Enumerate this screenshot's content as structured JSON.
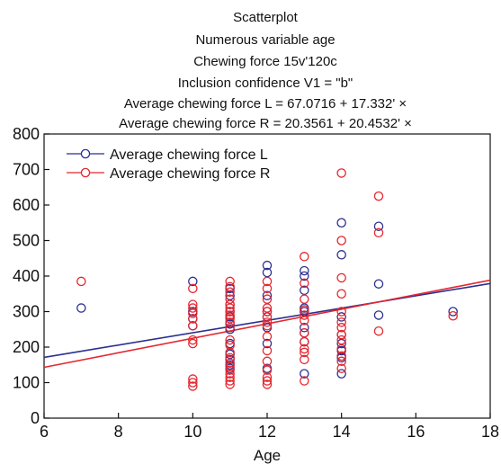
{
  "chart_data": {
    "type": "scatter",
    "title_lines": [
      "Scatterplot",
      "Numerous variable age",
      "Chewing force 15v'120c",
      "Inclusion confidence V1 = \"b\"",
      "Average chewing force L = 67.0716 + 17.332' ×",
      "Average chewing force R = 20.3561 + 20.4532' ×"
    ],
    "xlabel": "Age",
    "ylabel": "",
    "xlim": [
      6,
      18
    ],
    "ylim": [
      0,
      800
    ],
    "xticks": [
      6,
      8,
      10,
      12,
      14,
      16,
      18
    ],
    "yticks": [
      0,
      100,
      200,
      300,
      400,
      500,
      600,
      700,
      800
    ],
    "legend_position": "top-left",
    "series": [
      {
        "name": "Average chewing force L",
        "color": "#2b2f8f",
        "marker": "open-circle",
        "fit": {
          "intercept": 67.0716,
          "slope": 17.332
        },
        "points": [
          [
            7,
            310
          ],
          [
            10,
            385
          ],
          [
            10,
            300
          ],
          [
            10,
            280
          ],
          [
            10,
            260
          ],
          [
            11,
            365
          ],
          [
            11,
            345
          ],
          [
            11,
            320
          ],
          [
            11,
            300
          ],
          [
            11,
            285
          ],
          [
            11,
            265
          ],
          [
            11,
            250
          ],
          [
            11,
            210
          ],
          [
            11,
            180
          ],
          [
            11,
            165
          ],
          [
            11,
            150
          ],
          [
            11,
            140
          ],
          [
            12,
            430
          ],
          [
            12,
            410
          ],
          [
            12,
            345
          ],
          [
            12,
            300
          ],
          [
            12,
            285
          ],
          [
            12,
            255
          ],
          [
            12,
            210
          ],
          [
            12,
            140
          ],
          [
            13,
            415
          ],
          [
            13,
            400
          ],
          [
            13,
            360
          ],
          [
            13,
            310
          ],
          [
            13,
            300
          ],
          [
            13,
            255
          ],
          [
            13,
            240
          ],
          [
            13,
            215
          ],
          [
            13,
            125
          ],
          [
            14,
            550
          ],
          [
            14,
            460
          ],
          [
            14,
            285
          ],
          [
            14,
            235
          ],
          [
            14,
            210
          ],
          [
            14,
            190
          ],
          [
            14,
            170
          ],
          [
            14,
            125
          ],
          [
            15,
            540
          ],
          [
            15,
            378
          ],
          [
            15,
            290
          ],
          [
            17,
            300
          ]
        ]
      },
      {
        "name": "Average chewing force R",
        "color": "#e5262f",
        "marker": "open-circle",
        "fit": {
          "intercept": 20.3561,
          "slope": 20.4532
        },
        "points": [
          [
            7,
            385
          ],
          [
            10,
            365
          ],
          [
            10,
            320
          ],
          [
            10,
            310
          ],
          [
            10,
            295
          ],
          [
            10,
            280
          ],
          [
            10,
            260
          ],
          [
            10,
            220
          ],
          [
            10,
            210
          ],
          [
            10,
            110
          ],
          [
            10,
            100
          ],
          [
            10,
            90
          ],
          [
            11,
            385
          ],
          [
            11,
            370
          ],
          [
            11,
            355
          ],
          [
            11,
            335
          ],
          [
            11,
            320
          ],
          [
            11,
            310
          ],
          [
            11,
            300
          ],
          [
            11,
            290
          ],
          [
            11,
            280
          ],
          [
            11,
            270
          ],
          [
            11,
            255
          ],
          [
            11,
            220
          ],
          [
            11,
            205
          ],
          [
            11,
            185
          ],
          [
            11,
            170
          ],
          [
            11,
            155
          ],
          [
            11,
            145
          ],
          [
            11,
            135
          ],
          [
            11,
            125
          ],
          [
            11,
            115
          ],
          [
            11,
            105
          ],
          [
            11,
            95
          ],
          [
            12,
            385
          ],
          [
            12,
            365
          ],
          [
            12,
            335
          ],
          [
            12,
            310
          ],
          [
            12,
            300
          ],
          [
            12,
            285
          ],
          [
            12,
            270
          ],
          [
            12,
            260
          ],
          [
            12,
            230
          ],
          [
            12,
            190
          ],
          [
            12,
            160
          ],
          [
            12,
            135
          ],
          [
            12,
            115
          ],
          [
            12,
            105
          ],
          [
            12,
            95
          ],
          [
            13,
            455
          ],
          [
            13,
            380
          ],
          [
            13,
            335
          ],
          [
            13,
            305
          ],
          [
            13,
            290
          ],
          [
            13,
            275
          ],
          [
            13,
            240
          ],
          [
            13,
            215
          ],
          [
            13,
            195
          ],
          [
            13,
            185
          ],
          [
            13,
            165
          ],
          [
            13,
            105
          ],
          [
            14,
            690
          ],
          [
            14,
            500
          ],
          [
            14,
            395
          ],
          [
            14,
            350
          ],
          [
            14,
            300
          ],
          [
            14,
            270
          ],
          [
            14,
            255
          ],
          [
            14,
            235
          ],
          [
            14,
            220
          ],
          [
            14,
            195
          ],
          [
            14,
            175
          ],
          [
            14,
            160
          ],
          [
            14,
            140
          ],
          [
            15,
            625
          ],
          [
            15,
            522
          ],
          [
            15,
            245
          ],
          [
            17,
            288
          ]
        ]
      }
    ]
  }
}
